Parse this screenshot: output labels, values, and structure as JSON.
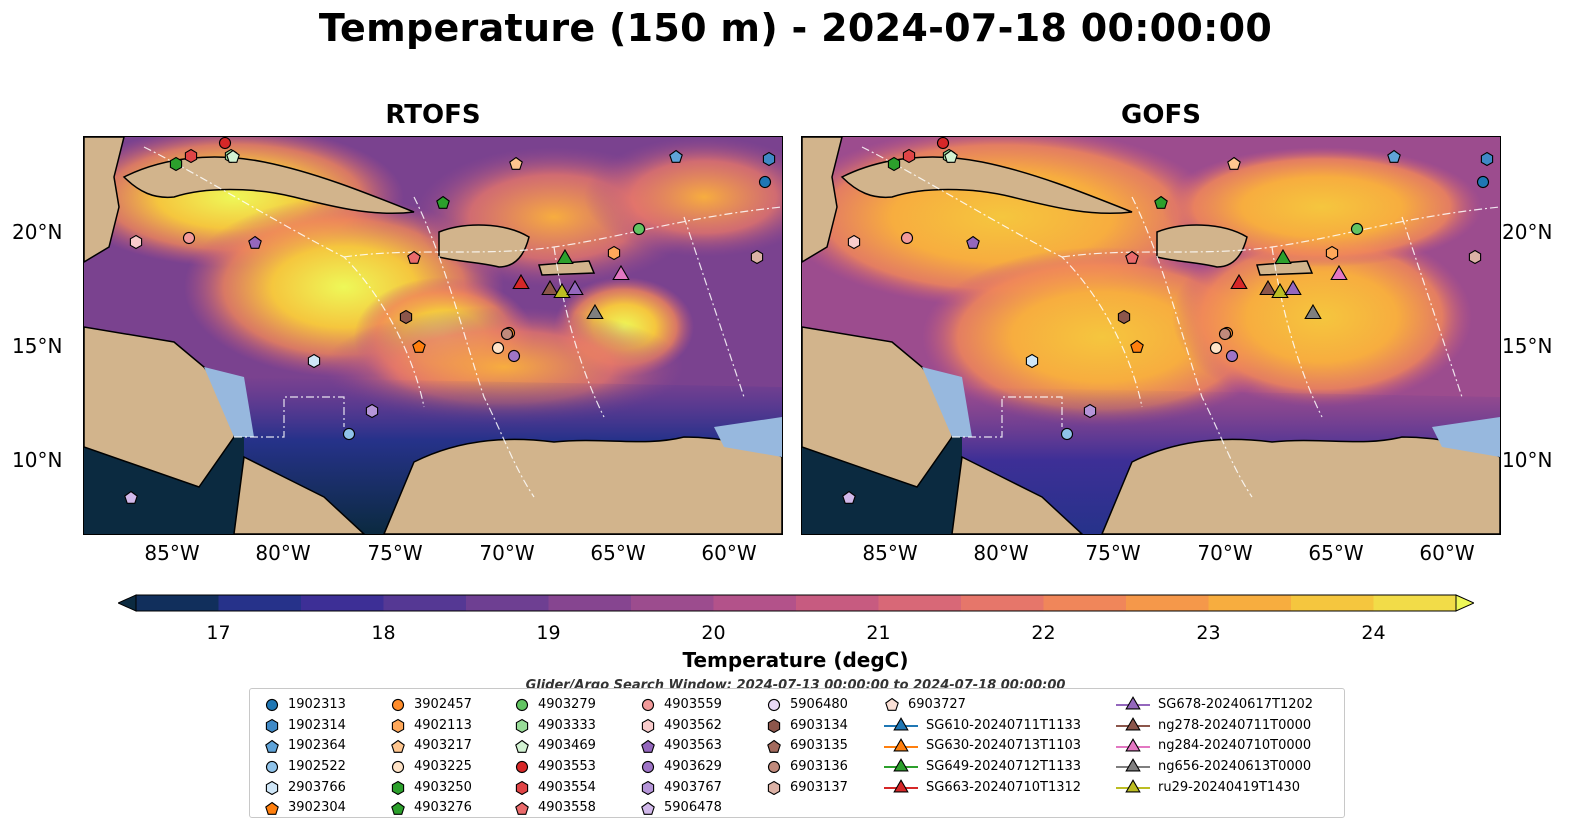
{
  "title": "Temperature (150 m) - 2024-07-18 00:00:00",
  "panels": [
    {
      "title": "RTOFS"
    },
    {
      "title": "GOFS"
    }
  ],
  "axes": {
    "lon_labels": [
      "85°W",
      "80°W",
      "75°W",
      "70°W",
      "65°W",
      "60°W"
    ],
    "lat_labels": [
      "20°N",
      "15°N",
      "10°N"
    ]
  },
  "colorbar": {
    "label": "Temperature (degC)",
    "ticks": [
      "17",
      "18",
      "19",
      "20",
      "21",
      "22",
      "23",
      "24"
    ],
    "colors": [
      "#0b2a40",
      "#112f5c",
      "#26328a",
      "#3d2f96",
      "#553894",
      "#6e3f92",
      "#864590",
      "#9c4c8e",
      "#b3528a",
      "#c75b80",
      "#d86877",
      "#e6766a",
      "#f0865a",
      "#f5984a",
      "#f7ad3f",
      "#f5c63e",
      "#f2dc48",
      "#eef858"
    ]
  },
  "legend": {
    "title": "Glider/Argo Search Window: 2024-07-13 00:00:00 to 2024-07-18 00:00:00",
    "columns": [
      [
        {
          "label": "1902313",
          "marker": "circle",
          "color": "#1f77b4"
        },
        {
          "label": "1902314",
          "marker": "hexagon",
          "color": "#3f89c6"
        },
        {
          "label": "1902364",
          "marker": "pentagon",
          "color": "#5fa3d8"
        },
        {
          "label": "1902522",
          "marker": "circle",
          "color": "#8fc3ea"
        },
        {
          "label": "2903766",
          "marker": "hexagon",
          "color": "#cfe6f7"
        },
        {
          "label": "3902304",
          "marker": "pentagon",
          "color": "#ff7f0e"
        }
      ],
      [
        {
          "label": "3902457",
          "marker": "circle",
          "color": "#ff8c2a"
        },
        {
          "label": "4902113",
          "marker": "hexagon",
          "color": "#ffa85a"
        },
        {
          "label": "4903217",
          "marker": "pentagon",
          "color": "#ffc68f"
        },
        {
          "label": "4903225",
          "marker": "circle",
          "color": "#ffe3c7"
        },
        {
          "label": "4903250",
          "marker": "hexagon",
          "color": "#2ca02c"
        },
        {
          "label": "4903276",
          "marker": "pentagon",
          "color": "#2ca02c"
        }
      ],
      [
        {
          "label": "4903279",
          "marker": "circle",
          "color": "#62c462"
        },
        {
          "label": "4903333",
          "marker": "hexagon",
          "color": "#98dc98"
        },
        {
          "label": "4903469",
          "marker": "pentagon",
          "color": "#d2f2d2"
        },
        {
          "label": "4903553",
          "marker": "circle",
          "color": "#d62728"
        },
        {
          "label": "4903554",
          "marker": "hexagon",
          "color": "#e04446"
        },
        {
          "label": "4903558",
          "marker": "pentagon",
          "color": "#ea6a6b"
        }
      ],
      [
        {
          "label": "4903559",
          "marker": "circle",
          "color": "#f29a9a"
        },
        {
          "label": "4903562",
          "marker": "hexagon",
          "color": "#f9cccc"
        },
        {
          "label": "4903563",
          "marker": "pentagon",
          "color": "#9467bd"
        },
        {
          "label": "4903629",
          "marker": "circle",
          "color": "#9e74c6"
        },
        {
          "label": "4903767",
          "marker": "hexagon",
          "color": "#b595d8"
        },
        {
          "label": "5906478",
          "marker": "pentagon",
          "color": "#d1b8ea"
        }
      ],
      [
        {
          "label": "5906480",
          "marker": "circle",
          "color": "#ead9f7"
        },
        {
          "label": "6903134",
          "marker": "hexagon",
          "color": "#8c564b"
        },
        {
          "label": "6903135",
          "marker": "pentagon",
          "color": "#a36a5d"
        },
        {
          "label": "6903136",
          "marker": "circle",
          "color": "#c08a7c"
        },
        {
          "label": "6903137",
          "marker": "hexagon",
          "color": "#dcb2a6"
        }
      ],
      [
        {
          "label": "6903727",
          "marker": "pentagon",
          "color": "#fbe0d6"
        },
        {
          "label": "SG610-20240711T1133",
          "marker": "triangle",
          "color": "#1f77b4"
        },
        {
          "label": "SG630-20240713T1103",
          "marker": "triangle",
          "color": "#ff7f0e"
        },
        {
          "label": "SG649-20240712T1133",
          "marker": "triangle",
          "color": "#2ca02c"
        },
        {
          "label": "SG663-20240710T1312",
          "marker": "triangle",
          "color": "#d62728"
        }
      ],
      [
        {
          "label": "SG678-20240617T1202",
          "marker": "triangle",
          "color": "#9467bd"
        },
        {
          "label": "ng278-20240711T0000",
          "marker": "triangle",
          "color": "#8c564b"
        },
        {
          "label": "ng284-20240710T0000",
          "marker": "triangle",
          "color": "#e377c2"
        },
        {
          "label": "ng656-20240613T0000",
          "marker": "triangle",
          "color": "#7f7f7f"
        },
        {
          "label": "ru29-20240419T1430",
          "marker": "triangle",
          "color": "#bcbd22"
        }
      ]
    ]
  },
  "map_features": {
    "land_color": "#d2b48c",
    "shelf_color": "#97b8de",
    "cold_color": "#0b2a40",
    "warm_color": "#f2dc48"
  }
}
